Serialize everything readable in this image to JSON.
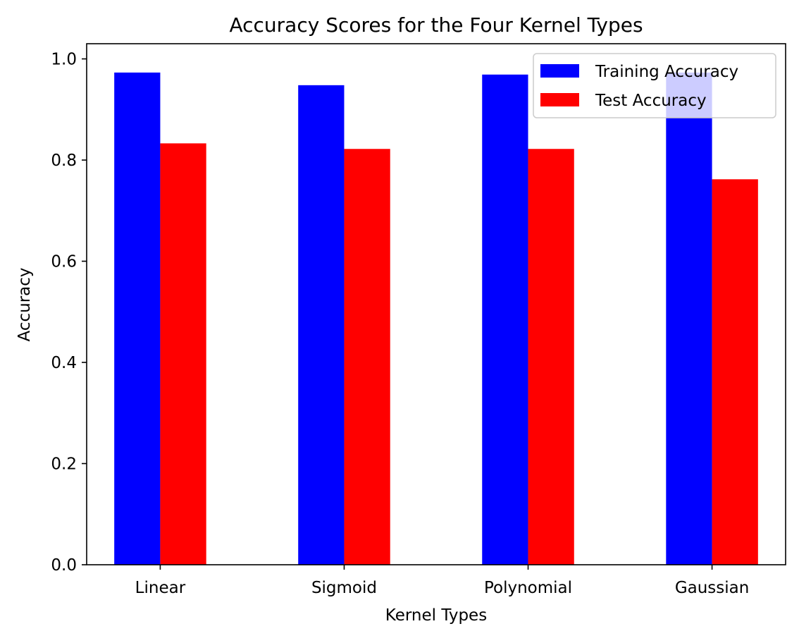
{
  "chart_data": {
    "type": "bar",
    "title": "Accuracy Scores for the Four Kernel Types",
    "xlabel": "Kernel Types",
    "ylabel": "Accuracy",
    "categories": [
      "Linear",
      "Sigmoid",
      "Polynomial",
      "Gaussian"
    ],
    "series": [
      {
        "name": "Training Accuracy",
        "color": "#0000ff",
        "values": [
          0.973,
          0.948,
          0.969,
          0.973
        ]
      },
      {
        "name": "Test Accuracy",
        "color": "#ff0000",
        "values": [
          0.833,
          0.822,
          0.822,
          0.762
        ]
      }
    ],
    "ylim": [
      0,
      1.03
    ],
    "yticks": [
      0.0,
      0.2,
      0.4,
      0.6,
      0.8,
      1.0
    ],
    "ytick_labels": [
      "0.0",
      "0.2",
      "0.4",
      "0.6",
      "0.8",
      "1.0"
    ],
    "grid": false,
    "legend_position": "top-right"
  }
}
